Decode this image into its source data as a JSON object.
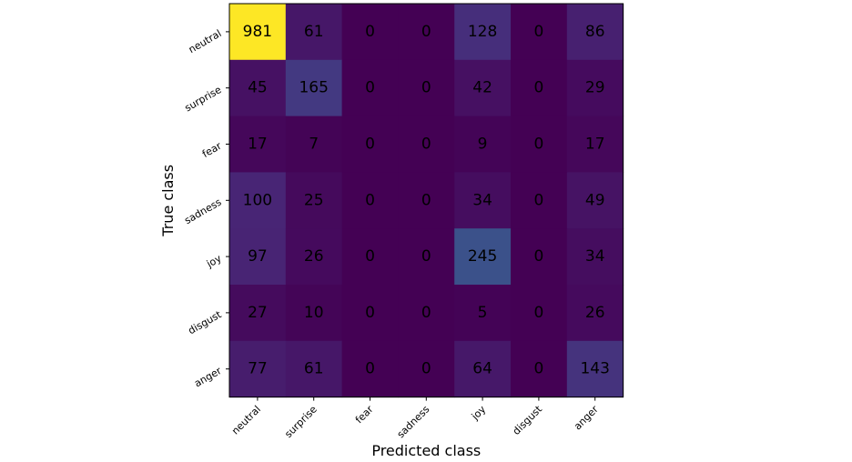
{
  "chart_data": {
    "type": "heatmap",
    "title": "",
    "xlabel": "Predicted class",
    "ylabel": "True class",
    "x_categories": [
      "neutral",
      "surprise",
      "fear",
      "sadness",
      "joy",
      "disgust",
      "anger"
    ],
    "y_categories": [
      "neutral",
      "surprise",
      "fear",
      "sadness",
      "joy",
      "disgust",
      "anger"
    ],
    "values": [
      [
        981,
        61,
        0,
        0,
        128,
        0,
        86
      ],
      [
        45,
        165,
        0,
        0,
        42,
        0,
        29
      ],
      [
        17,
        7,
        0,
        0,
        9,
        0,
        17
      ],
      [
        100,
        25,
        0,
        0,
        34,
        0,
        49
      ],
      [
        97,
        26,
        0,
        0,
        245,
        0,
        34
      ],
      [
        27,
        10,
        0,
        0,
        5,
        0,
        26
      ],
      [
        77,
        61,
        0,
        0,
        64,
        0,
        143
      ]
    ],
    "colormap": "viridis",
    "value_range": [
      0,
      981
    ],
    "grid": false,
    "legend": "none"
  }
}
